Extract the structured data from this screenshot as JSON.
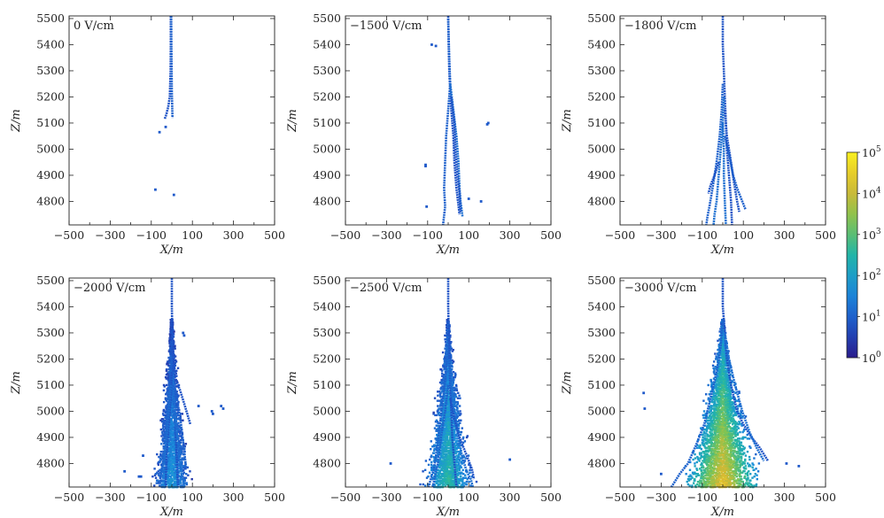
{
  "chart_data": {
    "type": "heatmap",
    "scale": "log",
    "xlim": [
      -500,
      500
    ],
    "ylim": [
      4710,
      5510
    ],
    "x_ticks": [
      -500,
      -300,
      -100,
      100,
      300,
      500
    ],
    "y_ticks": [
      4800,
      4900,
      5000,
      5100,
      5200,
      5300,
      5400,
      5500
    ],
    "x_tick_labels": [
      "−500",
      "−300",
      "−100",
      "100",
      "300",
      "500"
    ],
    "y_tick_labels": [
      "4800",
      "4900",
      "5000",
      "5100",
      "5200",
      "5300",
      "5400",
      "5500"
    ],
    "xlabel": "X/m",
    "ylabel": "Z/m",
    "colorbar": {
      "range_exponents": [
        0,
        5
      ],
      "tick_labels": [
        "10",
        "10",
        "10",
        "10",
        "10",
        "10"
      ],
      "tick_exponents": [
        "0",
        "1",
        "2",
        "3",
        "4",
        "5"
      ],
      "colors": [
        "#2a1d8c",
        "#1f55c8",
        "#1b8fdc",
        "#22b5a8",
        "#7fc453",
        "#dbb832",
        "#f9f01f"
      ]
    },
    "panels": [
      {
        "label": "0 V/cm",
        "peak_exponent": 1.0,
        "spread": 0.0,
        "tracks": [
          {
            "x": [
              -5,
              -5,
              -6,
              -8,
              -10,
              -18,
              -28,
              -35
            ],
            "z": [
              5510,
              5400,
              5300,
              5250,
              5200,
              5160,
              5130,
              5115
            ]
          },
          {
            "x": [
              -3,
              -2,
              -1,
              0,
              2,
              3
            ],
            "z": [
              5510,
              5400,
              5300,
              5220,
              5150,
              5120
            ]
          }
        ],
        "scatter": [
          [
            -60,
            5065
          ],
          [
            -30,
            5085
          ],
          [
            -80,
            4845
          ],
          [
            10,
            4825
          ]
        ]
      },
      {
        "label": "−1500 V/cm",
        "peak_exponent": 1.2,
        "spread": 0.0,
        "tracks": [
          {
            "x": [
              0,
              2,
              5,
              10,
              15,
              25,
              30,
              40,
              55
            ],
            "z": [
              5510,
              5400,
              5300,
              5220,
              5150,
              5050,
              4950,
              4850,
              4750
            ]
          },
          {
            "x": [
              0,
              5,
              10,
              0,
              -10,
              -15,
              -20,
              -15,
              -25
            ],
            "z": [
              5500,
              5350,
              5250,
              5150,
              5050,
              4950,
              4850,
              4780,
              4710
            ]
          },
          {
            "x": [
              10,
              25,
              40,
              50,
              55,
              60,
              65,
              70
            ],
            "z": [
              5250,
              5150,
              5050,
              4950,
              4850,
              4800,
              4770,
              4740
            ]
          },
          {
            "x": [
              15,
              30,
              35,
              45,
              55,
              60
            ],
            "z": [
              5200,
              5100,
              5000,
              4900,
              4830,
              4760
            ]
          }
        ],
        "scatter": [
          [
            -80,
            5400
          ],
          [
            -60,
            5395
          ],
          [
            190,
            5095
          ],
          [
            195,
            5100
          ],
          [
            -110,
            4935
          ],
          [
            -110,
            4940
          ],
          [
            160,
            4800
          ],
          [
            100,
            4810
          ],
          [
            -105,
            4780
          ]
        ]
      },
      {
        "label": "−1800 V/cm",
        "peak_exponent": 1.3,
        "spread": 0.0,
        "tracks": [
          {
            "x": [
              0,
              0,
              5,
              10,
              15,
              20,
              30,
              40,
              45
            ],
            "z": [
              5510,
              5400,
              5300,
              5200,
              5100,
              5000,
              4900,
              4800,
              4710
            ]
          },
          {
            "x": [
              0,
              -5,
              -15,
              -30,
              -50,
              -65,
              -75,
              -80
            ],
            "z": [
              5250,
              5150,
              5050,
              4950,
              4850,
              4780,
              4740,
              4710
            ]
          },
          {
            "x": [
              5,
              0,
              -10,
              -20,
              -30,
              -40,
              -45
            ],
            "z": [
              5200,
              5100,
              5000,
              4900,
              4800,
              4750,
              4710
            ]
          },
          {
            "x": [
              10,
              20,
              40,
              55,
              70,
              80
            ],
            "z": [
              5150,
              5050,
              4950,
              4870,
              4800,
              4760
            ]
          },
          {
            "x": [
              10,
              30,
              50,
              70,
              85,
              100,
              110
            ],
            "z": [
              5050,
              4980,
              4900,
              4850,
              4820,
              4790,
              4770
            ]
          },
          {
            "x": [
              0,
              5,
              5,
              10,
              15
            ],
            "z": [
              5100,
              5000,
              4900,
              4800,
              4710
            ]
          },
          {
            "x": [
              -20,
              -40,
              -60,
              -70
            ],
            "z": [
              4950,
              4900,
              4860,
              4830
            ]
          }
        ],
        "scatter": []
      },
      {
        "label": "−2000 V/cm",
        "peak_exponent": 1.6,
        "spread": 40.0,
        "tracks": [
          {
            "x": [
              0,
              0,
              2,
              5,
              10,
              15,
              20,
              25,
              30
            ],
            "z": [
              5510,
              5400,
              5300,
              5200,
              5100,
              5000,
              4900,
              4800,
              4710
            ]
          },
          {
            "x": [
              0,
              -10,
              -20,
              -35,
              -45,
              -55,
              -60
            ],
            "z": [
              5200,
              5100,
              5000,
              4900,
              4800,
              4750,
              4710
            ]
          },
          {
            "x": [
              5,
              10,
              20,
              35,
              45,
              55,
              60
            ],
            "z": [
              5150,
              5050,
              4950,
              4850,
              4780,
              4740,
              4710
            ]
          },
          {
            "x": [
              0,
              -5,
              -15,
              -25,
              -30
            ],
            "z": [
              5150,
              5050,
              4950,
              4850,
              4710
            ]
          },
          {
            "x": [
              10,
              25,
              45,
              60,
              70
            ],
            "z": [
              5100,
              5050,
              4950,
              4850,
              4780
            ]
          },
          {
            "x": [
              -5,
              -15,
              -25,
              -40,
              -50
            ],
            "z": [
              5100,
              5000,
              4900,
              4800,
              4750
            ]
          },
          {
            "x": [
              20,
              40,
              60,
              75,
              90
            ],
            "z": [
              5120,
              5080,
              5030,
              4990,
              4950
            ]
          }
        ],
        "scatter": [
          [
            55,
            5300
          ],
          [
            60,
            5290
          ],
          [
            195,
            5000
          ],
          [
            200,
            4990
          ],
          [
            240,
            5020
          ],
          [
            250,
            5010
          ],
          [
            130,
            5020
          ],
          [
            -230,
            4770
          ],
          [
            -160,
            4750
          ],
          [
            -150,
            4750
          ],
          [
            -140,
            4830
          ]
        ]
      },
      {
        "label": "−2500 V/cm",
        "peak_exponent": 2.4,
        "spread": 55.0,
        "tracks": [
          {
            "x": [
              0,
              0,
              3,
              6,
              10,
              15,
              20,
              30,
              40
            ],
            "z": [
              5510,
              5400,
              5300,
              5200,
              5100,
              5000,
              4900,
              4800,
              4710
            ]
          },
          {
            "x": [
              0,
              -10,
              -25,
              -40,
              -55,
              -70,
              -85,
              -95
            ],
            "z": [
              5250,
              5150,
              5050,
              4950,
              4850,
              4780,
              4740,
              4710
            ]
          },
          {
            "x": [
              5,
              15,
              30,
              50,
              70,
              90,
              110,
              120
            ],
            "z": [
              5200,
              5100,
              5000,
              4900,
              4820,
              4770,
              4740,
              4710
            ]
          },
          {
            "x": [
              10,
              30,
              55,
              80,
              100,
              115,
              125
            ],
            "z": [
              5050,
              4970,
              4900,
              4850,
              4810,
              4780,
              4740
            ]
          },
          {
            "x": [
              0,
              -15,
              -35,
              -50,
              -65,
              -75
            ],
            "z": [
              5100,
              5000,
              4900,
              4800,
              4750,
              4710
            ]
          }
        ],
        "scatter": [
          [
            -280,
            4800
          ],
          [
            300,
            4815
          ]
        ]
      },
      {
        "label": "−3000 V/cm",
        "peak_exponent": 4.2,
        "spread": 85.0,
        "tracks": [
          {
            "x": [
              0,
              0,
              5,
              10,
              20,
              40,
              70,
              100,
              140,
              180,
              220
            ],
            "z": [
              5510,
              5400,
              5350,
              5300,
              5200,
              5100,
              5000,
              4950,
              4900,
              4860,
              4810
            ]
          },
          {
            "x": [
              0,
              -10,
              -30,
              -60,
              -90,
              -130,
              -170,
              -210,
              -250
            ],
            "z": [
              5350,
              5250,
              5150,
              5050,
              4950,
              4870,
              4800,
              4760,
              4710
            ]
          },
          {
            "x": [
              10,
              30,
              60,
              95,
              130,
              165,
              200
            ],
            "z": [
              5300,
              5200,
              5100,
              5000,
              4920,
              4860,
              4810
            ]
          }
        ],
        "scatter": [
          [
            -385,
            5070
          ],
          [
            -380,
            5010
          ],
          [
            370,
            4790
          ],
          [
            -300,
            4760
          ],
          [
            310,
            4800
          ]
        ]
      }
    ]
  }
}
